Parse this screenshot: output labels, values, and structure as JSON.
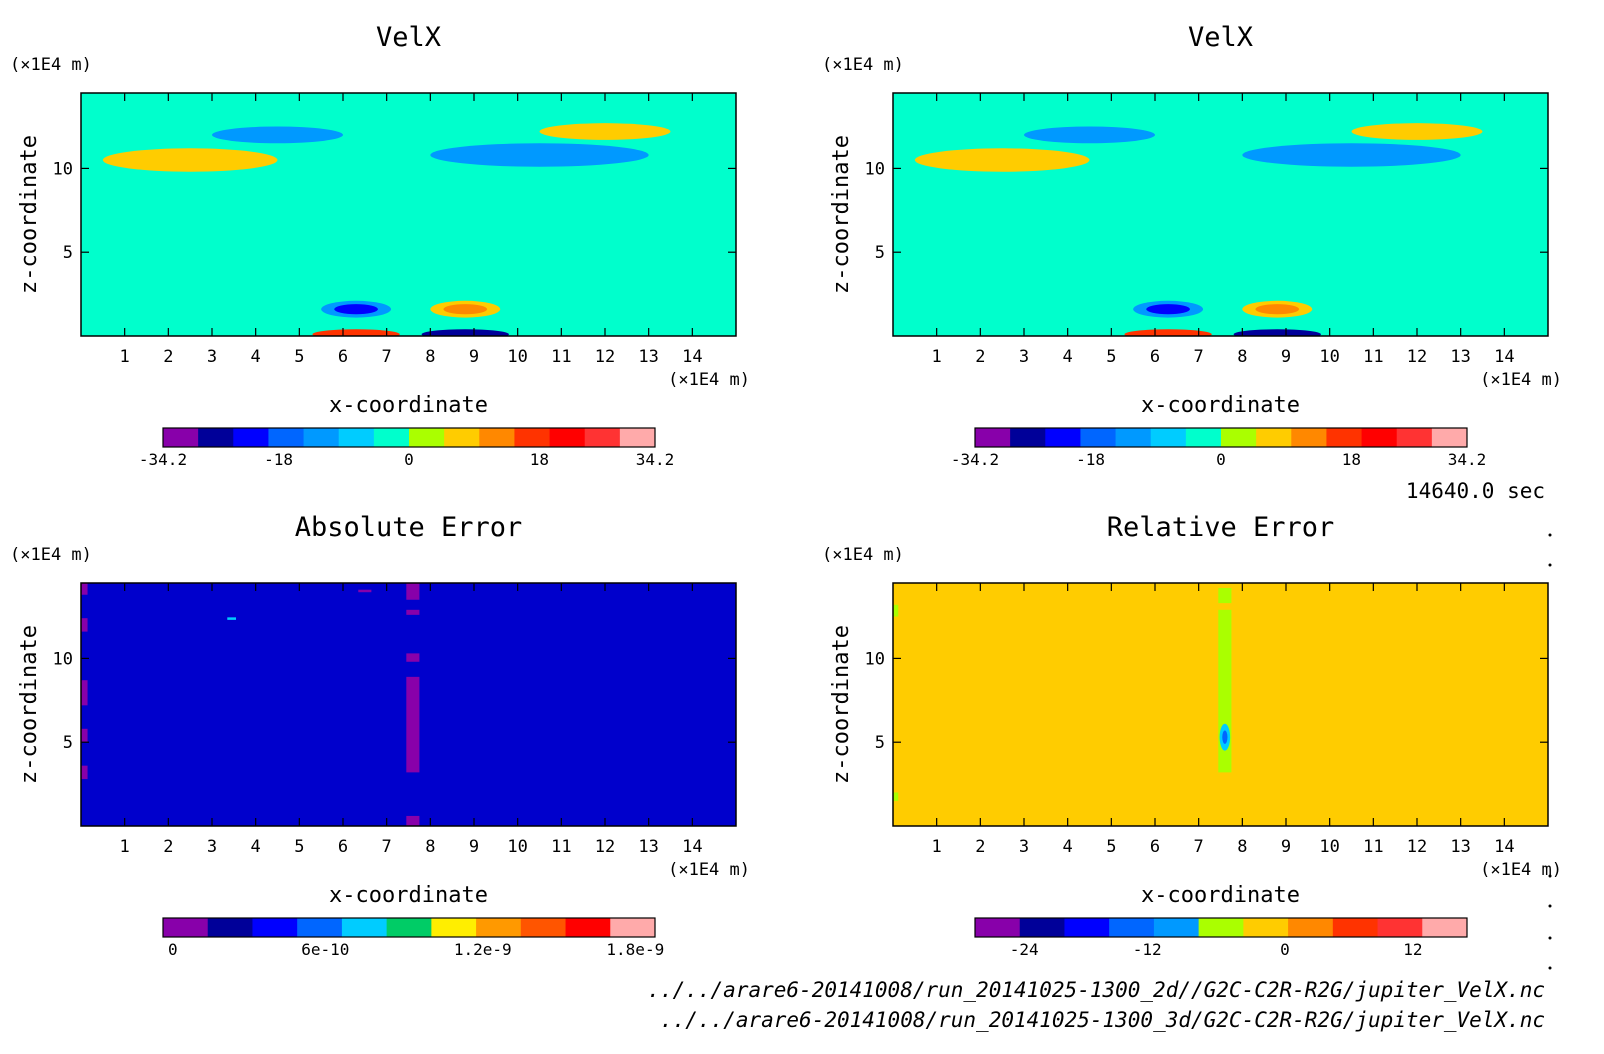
{
  "timestamp": "14640.0 sec",
  "files": [
    "../../arare6-20141008/run_20141025-1300_2d//G2C-C2R-R2G/jupiter_VelX.nc",
    "../../arare6-20141008/run_20141025-1300_3d/G2C-C2R-R2G/jupiter_VelX.nc"
  ],
  "chart_data": [
    {
      "type": "heatmap",
      "title": "VelX",
      "xlabel": "x-coordinate",
      "ylabel": "z-coordinate",
      "x_unit": "(×1E4 m)",
      "y_unit": "(×1E4 m)",
      "xlim": [
        0,
        15
      ],
      "ylim": [
        0,
        14.5
      ],
      "x_ticks": [
        1,
        2,
        3,
        4,
        5,
        6,
        7,
        8,
        9,
        10,
        11,
        12,
        13,
        14
      ],
      "y_ticks": [
        5,
        10
      ],
      "colorbar": {
        "colors": [
          "#8800aa",
          "#000099",
          "#0000ff",
          "#0066ff",
          "#0099ff",
          "#00ccff",
          "#00ffcc",
          "#aaff00",
          "#ffcc00",
          "#ff8800",
          "#ff3300",
          "#ff0000",
          "#ff3333",
          "#ffaaaa"
        ],
        "labels": [
          "-34.2",
          "-18",
          "0",
          "18",
          "34.2"
        ],
        "label_positions": [
          0,
          0.235,
          0.5,
          0.765,
          1
        ]
      },
      "background": "#00ffcc",
      "regions": [
        {
          "kind": "ellipse",
          "cx": 2.5,
          "cy": 10.5,
          "rx": 2.0,
          "ry": 0.7,
          "color": "#ffcc00"
        },
        {
          "kind": "ellipse",
          "cx": 4.5,
          "cy": 12,
          "rx": 1.5,
          "ry": 0.5,
          "color": "#0099ff"
        },
        {
          "kind": "ellipse",
          "cx": 10.5,
          "cy": 10.8,
          "rx": 2.5,
          "ry": 0.7,
          "color": "#0099ff"
        },
        {
          "kind": "ellipse",
          "cx": 12,
          "cy": 12.2,
          "rx": 1.5,
          "ry": 0.5,
          "color": "#ffcc00"
        },
        {
          "kind": "ellipse",
          "cx": 6.3,
          "cy": 1.6,
          "rx": 0.8,
          "ry": 0.5,
          "color": "#0099ff"
        },
        {
          "kind": "ellipse",
          "cx": 6.3,
          "cy": 1.6,
          "rx": 0.5,
          "ry": 0.3,
          "color": "#0000ff"
        },
        {
          "kind": "ellipse",
          "cx": 8.8,
          "cy": 1.6,
          "rx": 0.8,
          "ry": 0.5,
          "color": "#ffcc00"
        },
        {
          "kind": "ellipse",
          "cx": 8.8,
          "cy": 1.6,
          "rx": 0.5,
          "ry": 0.3,
          "color": "#ff8800"
        },
        {
          "kind": "ellipse",
          "cx": 6.3,
          "cy": 0.1,
          "rx": 1.0,
          "ry": 0.3,
          "color": "#ff3300"
        },
        {
          "kind": "ellipse",
          "cx": 8.8,
          "cy": 0.1,
          "rx": 1.0,
          "ry": 0.3,
          "color": "#000099"
        }
      ]
    },
    {
      "type": "heatmap",
      "title": "VelX",
      "xlabel": "x-coordinate",
      "ylabel": "z-coordinate",
      "x_unit": "(×1E4 m)",
      "y_unit": "(×1E4 m)",
      "xlim": [
        0,
        15
      ],
      "ylim": [
        0,
        14.5
      ],
      "x_ticks": [
        1,
        2,
        3,
        4,
        5,
        6,
        7,
        8,
        9,
        10,
        11,
        12,
        13,
        14
      ],
      "y_ticks": [
        5,
        10
      ],
      "colorbar": {
        "colors": [
          "#8800aa",
          "#000099",
          "#0000ff",
          "#0066ff",
          "#0099ff",
          "#00ccff",
          "#00ffcc",
          "#aaff00",
          "#ffcc00",
          "#ff8800",
          "#ff3300",
          "#ff0000",
          "#ff3333",
          "#ffaaaa"
        ],
        "labels": [
          "-34.2",
          "-18",
          "0",
          "18",
          "34.2"
        ],
        "label_positions": [
          0,
          0.235,
          0.5,
          0.765,
          1
        ]
      },
      "background": "#00ffcc",
      "regions": [
        {
          "kind": "ellipse",
          "cx": 2.5,
          "cy": 10.5,
          "rx": 2.0,
          "ry": 0.7,
          "color": "#ffcc00"
        },
        {
          "kind": "ellipse",
          "cx": 4.5,
          "cy": 12,
          "rx": 1.5,
          "ry": 0.5,
          "color": "#0099ff"
        },
        {
          "kind": "ellipse",
          "cx": 10.5,
          "cy": 10.8,
          "rx": 2.5,
          "ry": 0.7,
          "color": "#0099ff"
        },
        {
          "kind": "ellipse",
          "cx": 12,
          "cy": 12.2,
          "rx": 1.5,
          "ry": 0.5,
          "color": "#ffcc00"
        },
        {
          "kind": "ellipse",
          "cx": 6.3,
          "cy": 1.6,
          "rx": 0.8,
          "ry": 0.5,
          "color": "#0099ff"
        },
        {
          "kind": "ellipse",
          "cx": 6.3,
          "cy": 1.6,
          "rx": 0.5,
          "ry": 0.3,
          "color": "#0000ff"
        },
        {
          "kind": "ellipse",
          "cx": 8.8,
          "cy": 1.6,
          "rx": 0.8,
          "ry": 0.5,
          "color": "#ffcc00"
        },
        {
          "kind": "ellipse",
          "cx": 8.8,
          "cy": 1.6,
          "rx": 0.5,
          "ry": 0.3,
          "color": "#ff8800"
        },
        {
          "kind": "ellipse",
          "cx": 6.3,
          "cy": 0.1,
          "rx": 1.0,
          "ry": 0.3,
          "color": "#ff3300"
        },
        {
          "kind": "ellipse",
          "cx": 8.8,
          "cy": 0.1,
          "rx": 1.0,
          "ry": 0.3,
          "color": "#000099"
        }
      ]
    },
    {
      "type": "heatmap",
      "title": "Absolute Error",
      "xlabel": "x-coordinate",
      "ylabel": "z-coordinate",
      "x_unit": "(×1E4 m)",
      "y_unit": "(×1E4 m)",
      "xlim": [
        0,
        15
      ],
      "ylim": [
        0,
        14.5
      ],
      "x_ticks": [
        1,
        2,
        3,
        4,
        5,
        6,
        7,
        8,
        9,
        10,
        11,
        12,
        13,
        14
      ],
      "y_ticks": [
        5,
        10
      ],
      "colorbar": {
        "colors": [
          "#8800aa",
          "#000099",
          "#0000ff",
          "#0066ff",
          "#00ccff",
          "#00cc66",
          "#ffee00",
          "#ff9900",
          "#ff5500",
          "#ff0000",
          "#ffaaaa"
        ],
        "labels": [
          "0",
          "6e-10",
          "1.2e-9",
          "1.8e-9"
        ],
        "label_positions": [
          0.02,
          0.33,
          0.65,
          0.96
        ]
      },
      "background": "#0000cc",
      "regions": [
        {
          "kind": "rect",
          "x0": 7.45,
          "x1": 7.75,
          "y0": 3.2,
          "y1": 8.9,
          "color": "#8800aa"
        },
        {
          "kind": "rect",
          "x0": 7.45,
          "x1": 7.75,
          "y0": 9.8,
          "y1": 10.3,
          "color": "#8800aa"
        },
        {
          "kind": "rect",
          "x0": 7.45,
          "x1": 7.75,
          "y0": 12.6,
          "y1": 12.9,
          "color": "#8800aa"
        },
        {
          "kind": "rect",
          "x0": 7.45,
          "x1": 7.75,
          "y0": 13.5,
          "y1": 14.5,
          "color": "#8800aa"
        },
        {
          "kind": "rect",
          "x0": 7.45,
          "x1": 7.75,
          "y0": 0,
          "y1": 0.6,
          "color": "#8800aa"
        },
        {
          "kind": "rect",
          "x0": 0,
          "x1": 0.15,
          "y0": 13.8,
          "y1": 14.5,
          "color": "#8800aa"
        },
        {
          "kind": "rect",
          "x0": 0,
          "x1": 0.15,
          "y0": 11.6,
          "y1": 12.4,
          "color": "#8800aa"
        },
        {
          "kind": "rect",
          "x0": 0,
          "x1": 0.15,
          "y0": 7.2,
          "y1": 8.7,
          "color": "#8800aa"
        },
        {
          "kind": "rect",
          "x0": 0,
          "x1": 0.15,
          "y0": 5.0,
          "y1": 5.8,
          "color": "#8800aa"
        },
        {
          "kind": "rect",
          "x0": 0,
          "x1": 0.15,
          "y0": 2.8,
          "y1": 3.6,
          "color": "#8800aa"
        },
        {
          "kind": "rect",
          "x0": 6.35,
          "x1": 6.65,
          "y0": 13.95,
          "y1": 14.1,
          "color": "#8800aa"
        },
        {
          "kind": "rect",
          "x0": 3.35,
          "x1": 3.55,
          "y0": 12.3,
          "y1": 12.45,
          "color": "#00ccff"
        }
      ]
    },
    {
      "type": "heatmap",
      "title": "Relative Error",
      "xlabel": "x-coordinate",
      "ylabel": "z-coordinate",
      "x_unit": "(×1E4 m)",
      "y_unit": "(×1E4 m)",
      "xlim": [
        0,
        15
      ],
      "ylim": [
        0,
        14.5
      ],
      "x_ticks": [
        1,
        2,
        3,
        4,
        5,
        6,
        7,
        8,
        9,
        10,
        11,
        12,
        13,
        14
      ],
      "y_ticks": [
        5,
        10
      ],
      "colorbar": {
        "colors": [
          "#8800aa",
          "#000099",
          "#0000ff",
          "#0066ff",
          "#0099ff",
          "#aaff00",
          "#ffcc00",
          "#ff8800",
          "#ff3300",
          "#ff3333",
          "#ffaaaa"
        ],
        "labels": [
          "-24",
          "-12",
          "0",
          "12"
        ],
        "label_positions": [
          0.1,
          0.35,
          0.63,
          0.89
        ]
      },
      "background": "#ffcc00",
      "regions": [
        {
          "kind": "rect",
          "x0": 7.45,
          "x1": 7.75,
          "y0": 3.2,
          "y1": 12.9,
          "color": "#aaff00"
        },
        {
          "kind": "rect",
          "x0": 7.45,
          "x1": 7.75,
          "y0": 13.3,
          "y1": 14.2,
          "color": "#aaff00"
        },
        {
          "kind": "ellipse",
          "cx": 7.6,
          "cy": 5.3,
          "rx": 0.12,
          "ry": 0.8,
          "color": "#00ccff"
        },
        {
          "kind": "ellipse",
          "cx": 7.6,
          "cy": 5.3,
          "rx": 0.06,
          "ry": 0.4,
          "color": "#0066ff"
        },
        {
          "kind": "rect",
          "x0": 0,
          "x1": 0.12,
          "y0": 12.5,
          "y1": 13.2,
          "color": "#aaff00"
        },
        {
          "kind": "rect",
          "x0": 0,
          "x1": 0.12,
          "y0": 1.5,
          "y1": 2.0,
          "color": "#aaff00"
        }
      ]
    }
  ]
}
